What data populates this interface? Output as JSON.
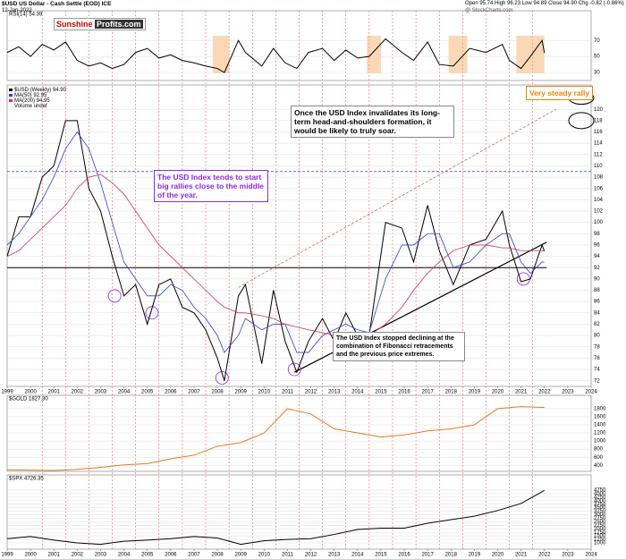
{
  "header": {
    "title": "$USD US Dollar - Cash Settle (EOD) ICE",
    "date": "12-Jan-2022",
    "quote": "Open 95.74 High 96.23 Low 94.89 Close 94.90 Chg -0.82 (-0.86%)",
    "source": "@ StockCharts.com",
    "logo_a": "Sunshine ",
    "logo_b": "Profits.com"
  },
  "annotations": [
    "Once the USD Index invalidates its long-term head-and-shoulders formation, it would be likely to truly soar.",
    "The USD Index tends to start big rallies close to the middle of the year.",
    "The USD Index stopped declining at the combination of Fibonacci retracements and the previous price extremes.",
    "Very steady rally"
  ],
  "chart_data": [
    {
      "type": "line",
      "label": "RSI(14) 54.39",
      "xlim": [
        1999,
        2024
      ],
      "ylim": [
        20,
        107
      ],
      "yticks": [
        30,
        50,
        70
      ],
      "x": [
        1999.0,
        1999.5,
        2000.0,
        2000.5,
        2001.0,
        2001.5,
        2002.0,
        2002.5,
        2003.0,
        2003.5,
        2004.0,
        2004.5,
        2005.0,
        2005.5,
        2006.0,
        2006.5,
        2007.0,
        2007.5,
        2008.0,
        2008.3,
        2008.9,
        2009.2,
        2009.9,
        2010.4,
        2010.9,
        2011.4,
        2011.9,
        2012.5,
        2013.0,
        2013.5,
        2014.0,
        2014.5,
        2015.2,
        2015.9,
        2016.4,
        2017.0,
        2017.5,
        2018.1,
        2018.8,
        2019.5,
        2020.2,
        2020.5,
        2021.0,
        2021.4,
        2021.9,
        2022.0
      ],
      "series": [
        {
          "color": "#000000",
          "values": [
            55,
            62,
            50,
            65,
            58,
            68,
            45,
            38,
            42,
            35,
            40,
            55,
            60,
            48,
            52,
            45,
            42,
            38,
            35,
            30,
            70,
            55,
            38,
            60,
            42,
            35,
            55,
            60,
            45,
            58,
            48,
            50,
            72,
            55,
            45,
            68,
            40,
            38,
            60,
            55,
            65,
            45,
            35,
            50,
            70,
            54.39
          ]
        }
      ]
    },
    {
      "type": "line",
      "xlim": [
        1999,
        2024
      ],
      "ylim": [
        71,
        124.3
      ],
      "yticks": [
        72,
        74,
        76,
        78,
        80,
        82,
        84,
        86,
        88,
        90,
        92,
        94,
        96,
        98,
        100,
        102,
        104,
        106,
        108,
        110,
        112,
        114,
        116,
        118,
        120
      ],
      "xticks": [
        1999,
        2000,
        2001,
        2002,
        2003,
        2004,
        2005,
        2006,
        2007,
        2008,
        2009,
        2010,
        2011,
        2012,
        2013,
        2014,
        2015,
        2016,
        2017,
        2018,
        2019,
        2020,
        2021,
        2022,
        2023,
        2024
      ],
      "x": [
        1999.0,
        1999.5,
        2000.0,
        2000.5,
        2001.0,
        2001.5,
        2002.0,
        2002.5,
        2003.0,
        2003.5,
        2004.0,
        2004.5,
        2005.0,
        2005.5,
        2006.0,
        2006.5,
        2007.0,
        2007.5,
        2008.0,
        2008.3,
        2008.9,
        2009.2,
        2009.9,
        2010.4,
        2010.9,
        2011.4,
        2011.9,
        2012.5,
        2013.0,
        2013.5,
        2014.0,
        2014.5,
        2015.2,
        2015.9,
        2016.4,
        2017.0,
        2017.5,
        2018.1,
        2018.8,
        2019.5,
        2020.2,
        2020.5,
        2021.0,
        2021.4,
        2021.9,
        2022.0
      ],
      "series": [
        {
          "name": "$USD (Weekly) 94.90",
          "color": "#000000",
          "values": [
            94,
            101,
            101,
            108,
            110,
            118,
            118,
            106,
            102,
            94,
            87,
            89,
            82,
            89,
            90,
            85,
            84,
            81,
            76,
            72,
            87,
            89,
            75,
            88,
            79,
            73.5,
            79,
            83,
            79,
            84,
            80,
            80,
            100,
            99,
            93,
            103,
            95,
            89,
            96,
            97,
            102,
            96,
            89.5,
            90,
            96,
            94.9
          ]
        },
        {
          "name": "MA(50) 92.95",
          "color": "#2b3fd6",
          "values": [
            96,
            98,
            101,
            104,
            108,
            113,
            116,
            113,
            107,
            100,
            93,
            90,
            87,
            87,
            89,
            88,
            85,
            83,
            80,
            77,
            80,
            83,
            81,
            82,
            82,
            77,
            77,
            80,
            81,
            82,
            81,
            80.5,
            90,
            96,
            96,
            98,
            98,
            92,
            93,
            96,
            98,
            98,
            93,
            91,
            93,
            92.95
          ]
        },
        {
          "name": "MA(200) 94.95",
          "color": "#d0305a",
          "values": [
            94,
            95,
            97,
            99,
            101,
            103,
            106,
            108,
            108.5,
            107,
            105,
            102,
            99,
            96,
            94,
            92,
            90,
            88,
            86,
            85,
            84,
            84,
            83.5,
            83,
            82,
            81.5,
            81,
            80.5,
            80,
            80,
            80,
            80,
            82,
            85,
            88,
            91,
            93,
            95,
            96,
            96,
            95.5,
            95.5,
            95,
            95,
            95,
            94.95
          ]
        }
      ],
      "extra_legend": "Volume undef"
    },
    {
      "type": "line",
      "label": "$GOLD 1827.30",
      "xlim": [
        1999,
        2024
      ],
      "ylim": [
        250,
        2130
      ],
      "yticks": [
        400,
        600,
        800,
        1000,
        1200,
        1400,
        1600,
        1800
      ],
      "x": [
        1999,
        2000,
        2001,
        2002,
        2003,
        2004,
        2005,
        2006,
        2007,
        2008,
        2009,
        2010,
        2011,
        2012,
        2013,
        2014,
        2015,
        2016,
        2017,
        2018,
        2019,
        2020,
        2021,
        2022
      ],
      "series": [
        {
          "color": "#e8781e",
          "values": [
            290,
            280,
            270,
            300,
            350,
            410,
            440,
            560,
            650,
            870,
            960,
            1200,
            1800,
            1670,
            1300,
            1200,
            1100,
            1150,
            1250,
            1300,
            1400,
            1800,
            1850,
            1827.3
          ]
        }
      ]
    },
    {
      "type": "line",
      "label": "$SPX 4726.35",
      "xlim": [
        1999,
        2024
      ],
      "ylim": [
        555,
        5830
      ],
      "yticks": [
        1000,
        1250,
        1500,
        1750,
        2000,
        2250,
        2500,
        2750,
        3000,
        3250,
        3500,
        3750,
        4000,
        4250,
        4500,
        4750
      ],
      "xticks": [
        1999,
        2000,
        2001,
        2002,
        2003,
        2004,
        2005,
        2006,
        2007,
        2008,
        2009,
        2010,
        2011,
        2012,
        2013,
        2014,
        2015,
        2016,
        2017,
        2018,
        2019,
        2020,
        2021,
        2022,
        2023,
        2024
      ],
      "x": [
        1999,
        2000,
        2001,
        2002,
        2003,
        2004,
        2005,
        2006,
        2007,
        2008,
        2009,
        2010,
        2011,
        2012,
        2013,
        2014,
        2015,
        2016,
        2017,
        2018,
        2019,
        2020,
        2021,
        2022
      ],
      "series": [
        {
          "color": "#000000",
          "values": [
            1300,
            1450,
            1200,
            1000,
            900,
            1120,
            1200,
            1300,
            1450,
            1350,
            900,
            1150,
            1250,
            1300,
            1600,
            1950,
            2050,
            2050,
            2400,
            2650,
            2900,
            3300,
            3800,
            4726.35
          ]
        }
      ]
    }
  ]
}
